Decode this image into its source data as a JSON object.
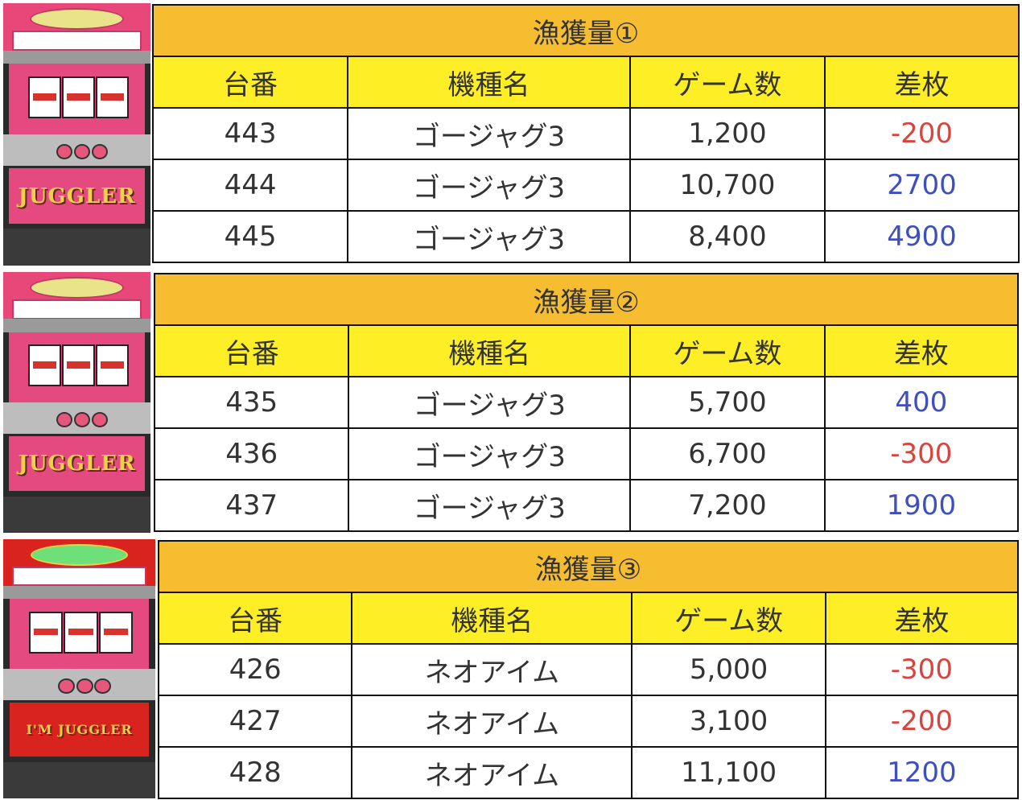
{
  "colors": {
    "title_bg": "#f6bd31",
    "header_bg": "#fdee25",
    "negative": "#d9443e",
    "positive": "#3f4fbe"
  },
  "headers": [
    "台番",
    "機種名",
    "ゲーム数",
    "差枚"
  ],
  "sections": [
    {
      "title": "漁獲量①",
      "machine_logo": "JUGGLER",
      "rows": [
        {
          "unit": "443",
          "model": "ゴージャグ3",
          "games": "1,200",
          "diff": "-200",
          "sign": "neg"
        },
        {
          "unit": "444",
          "model": "ゴージャグ3",
          "games": "10,700",
          "diff": "2700",
          "sign": "pos"
        },
        {
          "unit": "445",
          "model": "ゴージャグ3",
          "games": "8,400",
          "diff": "4900",
          "sign": "pos"
        }
      ]
    },
    {
      "title": "漁獲量②",
      "machine_logo": "JUGGLER",
      "rows": [
        {
          "unit": "435",
          "model": "ゴージャグ3",
          "games": "5,700",
          "diff": "400",
          "sign": "pos"
        },
        {
          "unit": "436",
          "model": "ゴージャグ3",
          "games": "6,700",
          "diff": "-300",
          "sign": "neg"
        },
        {
          "unit": "437",
          "model": "ゴージャグ3",
          "games": "7,200",
          "diff": "1900",
          "sign": "pos"
        }
      ]
    },
    {
      "title": "漁獲量③",
      "machine_logo": "I'M JUGGLER",
      "rows": [
        {
          "unit": "426",
          "model": "ネオアイム",
          "games": "5,000",
          "diff": "-300",
          "sign": "neg"
        },
        {
          "unit": "427",
          "model": "ネオアイム",
          "games": "3,100",
          "diff": "-200",
          "sign": "neg"
        },
        {
          "unit": "428",
          "model": "ネオアイム",
          "games": "11,100",
          "diff": "1200",
          "sign": "pos"
        }
      ]
    }
  ]
}
